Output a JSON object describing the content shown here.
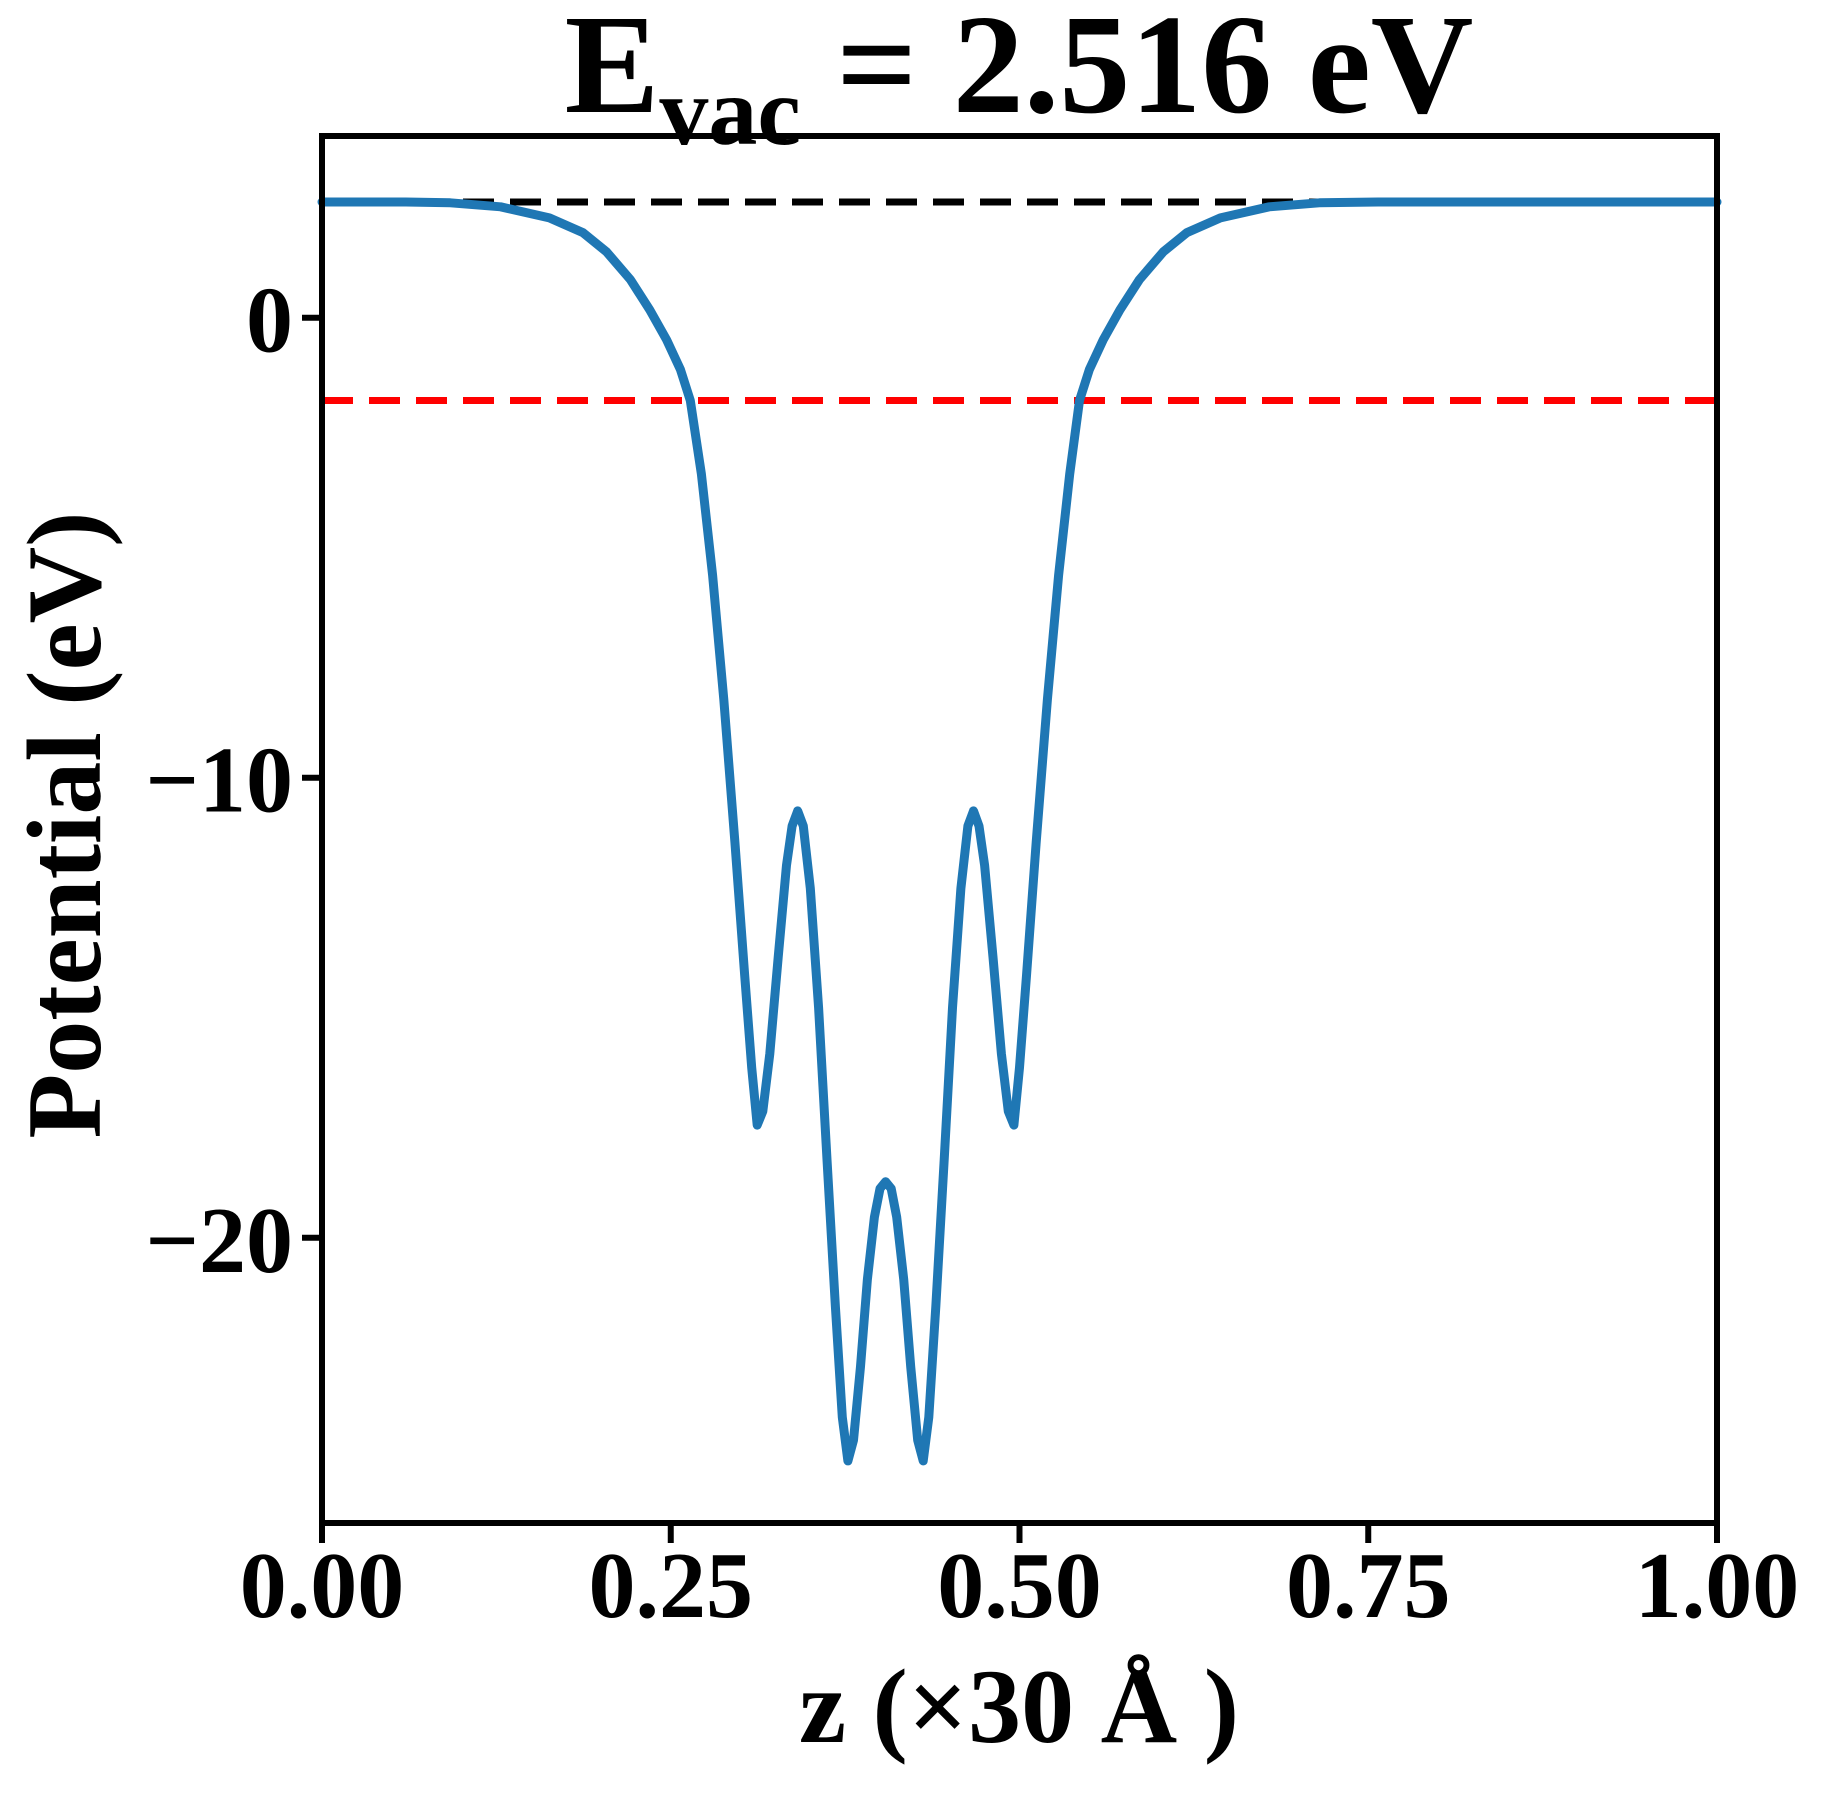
{
  "title": {
    "prefix": "E",
    "subscript": "vac",
    "suffix": " = 2.516 eV"
  },
  "chart_data": {
    "type": "line",
    "title": "E_vac = 2.516 eV",
    "xlabel": "z (×30 Å )",
    "ylabel": "Potential (eV)",
    "xlim": [
      0.0,
      1.0
    ],
    "ylim": [
      -26.2,
      3.95
    ],
    "grid": false,
    "legend_position": "none",
    "x_ticks": {
      "values": [
        0.0,
        0.25,
        0.5,
        0.75,
        1.0
      ],
      "labels": [
        "0.00",
        "0.25",
        "0.50",
        "0.75",
        "1.00"
      ]
    },
    "y_ticks": {
      "values": [
        0,
        -10,
        -20
      ],
      "labels": [
        "0",
        "−10",
        "−20"
      ]
    },
    "reference_lines": [
      {
        "name": "vacuum-level-line",
        "y": 2.516,
        "color": "#000000",
        "style": "dashed"
      },
      {
        "name": "fermi-level-line",
        "y": -1.8,
        "color": "#ff0000",
        "style": "dashed"
      }
    ],
    "series": [
      {
        "name": "planar-averaged-potential",
        "color": "#1f77b4",
        "style": "solid",
        "points": [
          [
            0.0,
            2.516
          ],
          [
            0.03,
            2.516
          ],
          [
            0.06,
            2.515
          ],
          [
            0.092,
            2.497
          ],
          [
            0.128,
            2.41
          ],
          [
            0.163,
            2.17
          ],
          [
            0.187,
            1.85
          ],
          [
            0.204,
            1.43
          ],
          [
            0.221,
            0.83
          ],
          [
            0.235,
            0.17
          ],
          [
            0.247,
            -0.48
          ],
          [
            0.257,
            -1.13
          ],
          [
            0.264,
            -1.8
          ],
          [
            0.272,
            -3.4
          ],
          [
            0.28,
            -5.6
          ],
          [
            0.288,
            -8.3
          ],
          [
            0.296,
            -11.4
          ],
          [
            0.303,
            -14.3
          ],
          [
            0.308,
            -16.3
          ],
          [
            0.312,
            -17.55
          ],
          [
            0.316,
            -17.25
          ],
          [
            0.321,
            -16.0
          ],
          [
            0.327,
            -13.9
          ],
          [
            0.333,
            -11.9
          ],
          [
            0.337,
            -11.05
          ],
          [
            0.341,
            -10.72
          ],
          [
            0.345,
            -11.05
          ],
          [
            0.35,
            -12.4
          ],
          [
            0.356,
            -15.0
          ],
          [
            0.362,
            -18.3
          ],
          [
            0.368,
            -21.5
          ],
          [
            0.373,
            -23.9
          ],
          [
            0.377,
            -24.85
          ],
          [
            0.381,
            -24.4
          ],
          [
            0.386,
            -22.8
          ],
          [
            0.391,
            -20.9
          ],
          [
            0.396,
            -19.55
          ],
          [
            0.4,
            -18.93
          ],
          [
            0.404,
            -18.78
          ],
          [
            0.408,
            -18.93
          ],
          [
            0.412,
            -19.55
          ],
          [
            0.417,
            -20.9
          ],
          [
            0.422,
            -22.8
          ],
          [
            0.427,
            -24.4
          ],
          [
            0.431,
            -24.85
          ],
          [
            0.435,
            -23.9
          ],
          [
            0.44,
            -21.5
          ],
          [
            0.446,
            -18.3
          ],
          [
            0.452,
            -15.0
          ],
          [
            0.458,
            -12.4
          ],
          [
            0.463,
            -11.05
          ],
          [
            0.467,
            -10.72
          ],
          [
            0.471,
            -11.05
          ],
          [
            0.475,
            -11.9
          ],
          [
            0.481,
            -13.9
          ],
          [
            0.487,
            -16.0
          ],
          [
            0.492,
            -17.25
          ],
          [
            0.496,
            -17.55
          ],
          [
            0.5,
            -16.3
          ],
          [
            0.505,
            -14.3
          ],
          [
            0.512,
            -11.4
          ],
          [
            0.52,
            -8.3
          ],
          [
            0.528,
            -5.6
          ],
          [
            0.536,
            -3.4
          ],
          [
            0.543,
            -1.8
          ],
          [
            0.55,
            -1.13
          ],
          [
            0.56,
            -0.48
          ],
          [
            0.572,
            0.17
          ],
          [
            0.586,
            0.83
          ],
          [
            0.603,
            1.43
          ],
          [
            0.62,
            1.85
          ],
          [
            0.644,
            2.17
          ],
          [
            0.679,
            2.41
          ],
          [
            0.715,
            2.497
          ],
          [
            0.757,
            2.515
          ],
          [
            0.8,
            2.516
          ],
          [
            0.85,
            2.516
          ],
          [
            0.9,
            2.516
          ],
          [
            0.95,
            2.516
          ],
          [
            1.0,
            2.516
          ]
        ]
      }
    ]
  },
  "colors": {
    "curve": "#1f77b4",
    "vacuum_line": "#000000",
    "fermi_line": "#ff0000",
    "axes": "#000000",
    "background": "#ffffff"
  }
}
